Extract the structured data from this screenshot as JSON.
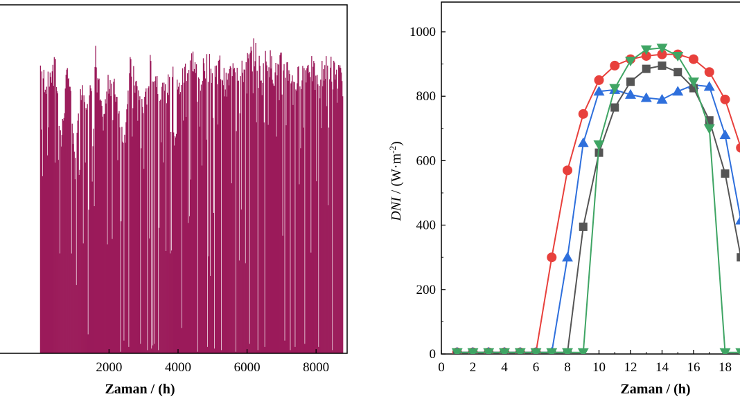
{
  "chart_data": [
    {
      "type": "bar",
      "xlabel": "Zaman / (h)",
      "ylabel": "",
      "xlim": [
        -1200,
        8900
      ],
      "ylim": [
        0,
        1100
      ],
      "xticks": [
        2000,
        4000,
        6000,
        8000
      ],
      "bar_color": "#9b1b5a",
      "envelope": [
        [
          0,
          950
        ],
        [
          200,
          880
        ],
        [
          400,
          1000
        ],
        [
          600,
          700
        ],
        [
          800,
          960
        ],
        [
          1000,
          640
        ],
        [
          1200,
          900
        ],
        [
          1400,
          820
        ],
        [
          1600,
          980
        ],
        [
          1800,
          760
        ],
        [
          2000,
          910
        ],
        [
          2200,
          860
        ],
        [
          2400,
          720
        ],
        [
          2600,
          940
        ],
        [
          2800,
          880
        ],
        [
          3000,
          800
        ],
        [
          3200,
          960
        ],
        [
          3400,
          900
        ],
        [
          3600,
          850
        ],
        [
          3800,
          920
        ],
        [
          4000,
          870
        ],
        [
          4200,
          940
        ],
        [
          4400,
          980
        ],
        [
          4600,
          900
        ],
        [
          4800,
          960
        ],
        [
          5000,
          930
        ],
        [
          5200,
          950
        ],
        [
          5400,
          880
        ],
        [
          5600,
          980
        ],
        [
          5800,
          920
        ],
        [
          6000,
          960
        ],
        [
          6200,
          1000
        ],
        [
          6400,
          940
        ],
        [
          6600,
          980
        ],
        [
          6800,
          920
        ],
        [
          7000,
          960
        ],
        [
          7200,
          940
        ],
        [
          7400,
          900
        ],
        [
          7600,
          930
        ],
        [
          7800,
          960
        ],
        [
          8000,
          900
        ],
        [
          8200,
          940
        ],
        [
          8400,
          950
        ],
        [
          8600,
          930
        ],
        [
          8760,
          900
        ]
      ],
      "gaps": [
        [
          1380,
          60
        ],
        [
          2310,
          5
        ],
        [
          2420,
          40
        ],
        [
          2560,
          20
        ],
        [
          2890,
          30
        ],
        [
          3100,
          10
        ],
        [
          3220,
          15
        ],
        [
          3260,
          25
        ],
        [
          3300,
          30
        ],
        [
          3420,
          10
        ],
        [
          4100,
          80
        ],
        [
          4560,
          5
        ],
        [
          4830,
          20
        ],
        [
          5040,
          15
        ],
        [
          5240,
          10
        ],
        [
          5650,
          5
        ],
        [
          6050,
          30
        ],
        [
          6290,
          10
        ],
        [
          6500,
          20
        ],
        [
          7080,
          40
        ],
        [
          7240,
          10
        ],
        [
          7370,
          20
        ],
        [
          7650,
          30
        ],
        [
          8050,
          20
        ],
        [
          8450,
          10
        ]
      ]
    },
    {
      "type": "line",
      "xlabel": "Zaman / (h)",
      "ylabel_italic": "DNI",
      "ylabel_rest": " / (W·m",
      "ylabel_sup": "-2",
      "ylabel_close": ")",
      "xlim": [
        0,
        19.2
      ],
      "ylim": [
        0,
        1100
      ],
      "xticks": [
        0,
        2,
        4,
        6,
        8,
        10,
        12,
        14,
        16,
        18
      ],
      "yticks": [
        0,
        200,
        400,
        600,
        800,
        1000
      ],
      "series": [
        {
          "color": "#e8403c",
          "marker": "circle",
          "x": [
            1,
            2,
            3,
            4,
            5,
            6,
            7,
            8,
            9,
            10,
            11,
            12,
            13,
            14,
            15,
            16,
            17,
            18,
            19
          ],
          "y": [
            5,
            5,
            5,
            5,
            5,
            5,
            300,
            570,
            745,
            850,
            895,
            915,
            925,
            930,
            930,
            915,
            875,
            790,
            640
          ]
        },
        {
          "color": "#2e6fdc",
          "marker": "triangle-up",
          "x": [
            1,
            2,
            3,
            4,
            5,
            6,
            7,
            8,
            9,
            10,
            11,
            12,
            13,
            14,
            15,
            16,
            17,
            18,
            19
          ],
          "y": [
            5,
            5,
            5,
            5,
            5,
            5,
            5,
            300,
            655,
            815,
            820,
            805,
            795,
            790,
            815,
            835,
            830,
            680,
            415
          ]
        },
        {
          "color": "#555555",
          "marker": "square",
          "x": [
            1,
            2,
            3,
            4,
            5,
            6,
            7,
            8,
            9,
            10,
            11,
            12,
            13,
            14,
            15,
            16,
            17,
            18,
            19
          ],
          "y": [
            5,
            5,
            5,
            5,
            5,
            5,
            5,
            5,
            395,
            625,
            765,
            845,
            885,
            895,
            875,
            825,
            725,
            560,
            300
          ]
        },
        {
          "color": "#3fa564",
          "marker": "triangle-down",
          "x": [
            1,
            2,
            3,
            4,
            5,
            6,
            7,
            8,
            9,
            10,
            11,
            12,
            13,
            14,
            15,
            16,
            17,
            18,
            19
          ],
          "y": [
            5,
            5,
            5,
            5,
            5,
            5,
            5,
            5,
            5,
            650,
            825,
            910,
            945,
            950,
            925,
            845,
            700,
            5,
            5
          ]
        }
      ]
    }
  ]
}
